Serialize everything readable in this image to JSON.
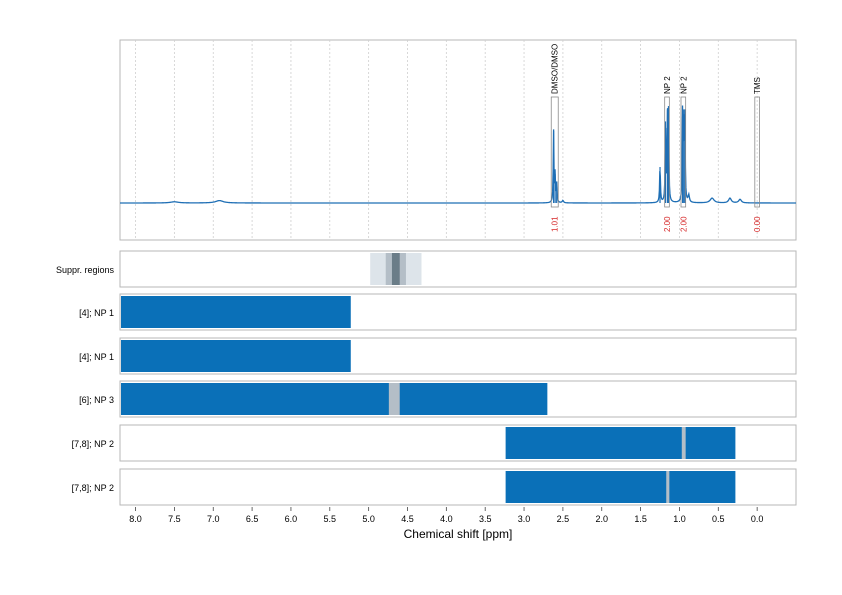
{
  "chart_data": {
    "type": "line",
    "xlabel": "Chemical shift [ppm]",
    "xlim": [
      8.2,
      -0.5
    ],
    "x_ticks": [
      "8.0",
      "7.5",
      "7.0",
      "6.5",
      "6.0",
      "5.5",
      "5.0",
      "4.5",
      "4.0",
      "3.5",
      "3.0",
      "2.5",
      "2.0",
      "1.5",
      "1.0",
      "0.5",
      "0.0"
    ],
    "x_tick_values": [
      8.0,
      7.5,
      7.0,
      6.5,
      6.0,
      5.5,
      5.0,
      4.5,
      4.0,
      3.5,
      3.0,
      2.5,
      2.0,
      1.5,
      1.0,
      0.5,
      0.0
    ],
    "grid": true,
    "spectrum": {
      "color": "#1f6fb5",
      "baseline_ppm": [
        -0.5,
        8.2
      ],
      "peaks": [
        {
          "ppm": 7.5,
          "height": 0.01,
          "width": 0.06
        },
        {
          "ppm": 6.92,
          "height": 0.02,
          "width": 0.06
        },
        {
          "ppm": 2.62,
          "height": 0.6,
          "width": 0.005
        },
        {
          "ppm": 2.6,
          "height": 0.24,
          "width": 0.005
        },
        {
          "ppm": 2.58,
          "height": 0.18,
          "width": 0.005
        },
        {
          "ppm": 2.5,
          "height": 0.02,
          "width": 0.01
        },
        {
          "ppm": 1.25,
          "height": 0.3,
          "width": 0.006
        },
        {
          "ppm": 1.18,
          "height": 0.68,
          "width": 0.005
        },
        {
          "ppm": 1.155,
          "height": 0.78,
          "width": 0.005
        },
        {
          "ppm": 1.14,
          "height": 0.72,
          "width": 0.005
        },
        {
          "ppm": 0.96,
          "height": 0.72,
          "width": 0.005
        },
        {
          "ppm": 0.945,
          "height": 0.78,
          "width": 0.005
        },
        {
          "ppm": 0.93,
          "height": 0.7,
          "width": 0.005
        },
        {
          "ppm": 0.88,
          "height": 0.06,
          "width": 0.01
        },
        {
          "ppm": 0.58,
          "height": 0.04,
          "width": 0.03
        },
        {
          "ppm": 0.35,
          "height": 0.04,
          "width": 0.02
        },
        {
          "ppm": 0.22,
          "height": 0.03,
          "width": 0.02
        }
      ]
    },
    "annotations": [
      {
        "label": "DMSO/DMSO",
        "ppm_from": 2.65,
        "ppm_to": 2.56,
        "integral": "1.01"
      },
      {
        "label": "NP 2",
        "ppm_from": 1.19,
        "ppm_to": 1.13,
        "integral": "2.00"
      },
      {
        "label": "NP 2",
        "ppm_from": 0.98,
        "ppm_to": 0.92,
        "integral": "2.00"
      },
      {
        "label": "TMS",
        "ppm_from": 0.03,
        "ppm_to": -0.03,
        "integral": "0.00"
      }
    ],
    "colors": {
      "series": "#1f6fb5",
      "bar": "#0a70b8",
      "integral_text": "#d62728",
      "suppression_light": "#dde4ea",
      "suppression_mid": "#b4bec7",
      "suppression_dark": "#6b7d88"
    },
    "rows": [
      {
        "label": "Suppr. regions",
        "type": "suppression",
        "bands": [
          {
            "from": 4.98,
            "to": 4.32,
            "shade": "light"
          },
          {
            "from": 4.78,
            "to": 4.52,
            "shade": "mid"
          },
          {
            "from": 4.7,
            "to": 4.6,
            "shade": "dark"
          }
        ]
      },
      {
        "label": "[4]; NP 1",
        "type": "bars",
        "bars": [
          {
            "from": 8.2,
            "to": 5.23
          }
        ],
        "gaps": []
      },
      {
        "label": "[4]; NP 1",
        "type": "bars",
        "bars": [
          {
            "from": 8.2,
            "to": 5.23
          }
        ],
        "gaps": []
      },
      {
        "label": "[6]; NP 3",
        "type": "bars",
        "bars": [
          {
            "from": 8.2,
            "to": 2.7
          }
        ],
        "gaps": [
          {
            "from": 4.74,
            "to": 4.6
          }
        ]
      },
      {
        "label": "[7,8]; NP 2",
        "type": "bars",
        "bars": [
          {
            "from": 3.25,
            "to": 0.28
          }
        ],
        "gaps": [
          {
            "from": 0.97,
            "to": 0.92
          }
        ]
      },
      {
        "label": "[7,8]; NP 2",
        "type": "bars",
        "bars": [
          {
            "from": 3.25,
            "to": 0.28
          }
        ],
        "gaps": [
          {
            "from": 1.17,
            "to": 1.13
          }
        ]
      }
    ]
  }
}
